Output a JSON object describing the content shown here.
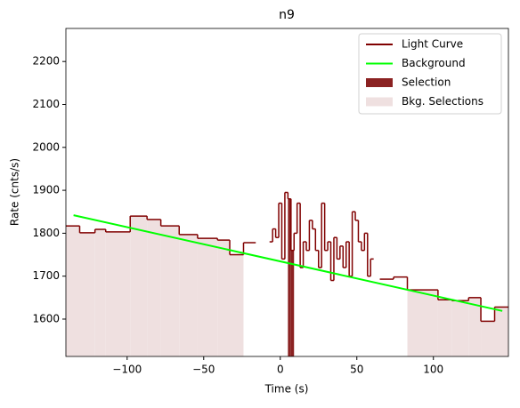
{
  "chart_data": {
    "type": "step",
    "title": "n9",
    "x_label": "Time (s)",
    "y_label": "Rate (cnts/s)",
    "xlim": [
      -140,
      149
    ],
    "ylim": [
      1513,
      2277
    ],
    "xticks": [
      {
        "value": -100,
        "label": "−100"
      },
      {
        "value": -50,
        "label": "−50"
      },
      0,
      50,
      100
    ],
    "yticks": [
      1600,
      1700,
      1800,
      1900,
      2000,
      2100,
      2200
    ],
    "legend": "upper right",
    "light_curve": {
      "name": "Light Curve",
      "color": "#800000",
      "bins": [
        -140,
        -131,
        -121,
        -114,
        -98,
        -87,
        -78,
        -66,
        -54,
        -41,
        -33,
        -24,
        -16,
        -7,
        -5,
        -3,
        -1,
        1,
        3,
        5,
        7,
        9,
        11,
        13,
        15,
        17,
        19,
        21,
        23,
        25,
        27,
        29,
        31,
        33,
        35,
        37,
        39,
        41,
        43,
        45,
        47,
        49,
        51,
        53,
        55,
        57,
        59,
        61,
        65,
        74,
        83,
        103,
        112,
        123,
        131,
        140,
        149
      ],
      "values": [
        1817,
        1801,
        1809,
        1803,
        1840,
        1832,
        1817,
        1797,
        1788,
        1784,
        1750,
        1778,
        null,
        1780,
        1810,
        1790,
        1870,
        1740,
        1895,
        1880,
        1760,
        1800,
        1870,
        1720,
        1780,
        1760,
        1830,
        1810,
        1760,
        1720,
        1870,
        1760,
        1780,
        1690,
        1790,
        1740,
        1770,
        1720,
        1780,
        1700,
        1850,
        1830,
        1780,
        1760,
        1800,
        1700,
        1740,
        null,
        1693,
        1698,
        1668,
        1645,
        1643,
        1650,
        1595,
        1628
      ]
    },
    "background": {
      "name": "Background",
      "color": "#00ff00",
      "x": [
        -135,
        145
      ],
      "values": [
        1842,
        1619
      ]
    },
    "selection": {
      "name": "Selection",
      "color": "#8b2222",
      "range": [
        5,
        9
      ]
    },
    "bkg_selections": {
      "name": "Bkg. Selections",
      "color": "#efe0e0",
      "ranges": [
        [
          -140,
          -24
        ],
        [
          83,
          149
        ]
      ]
    }
  }
}
